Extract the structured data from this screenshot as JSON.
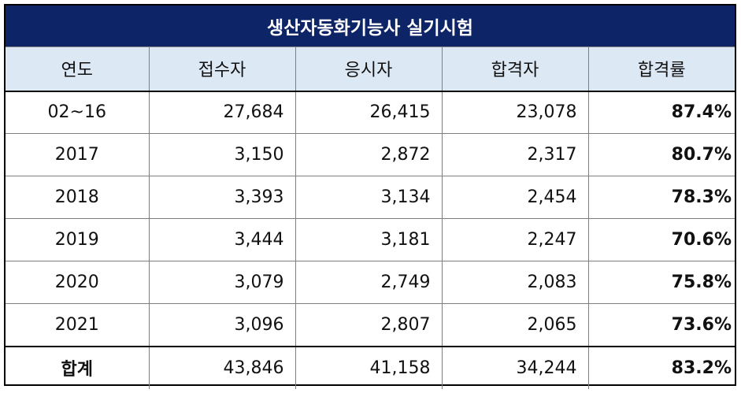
{
  "title": "생산자동화기능사 실기시험",
  "headers": [
    "연도",
    "접수자",
    "응시자",
    "합격자",
    "합격률"
  ],
  "rows": [
    {
      "year": "02~16",
      "applicants": "27,684",
      "examinees": "26,415",
      "passed": "23,078",
      "rate": "87.4%"
    },
    {
      "year": "2017",
      "applicants": "3,150",
      "examinees": "2,872",
      "passed": "2,317",
      "rate": "80.7%"
    },
    {
      "year": "2018",
      "applicants": "3,393",
      "examinees": "3,134",
      "passed": "2,454",
      "rate": "78.3%"
    },
    {
      "year": "2019",
      "applicants": "3,444",
      "examinees": "3,181",
      "passed": "2,247",
      "rate": "70.6%"
    },
    {
      "year": "2020",
      "applicants": "3,079",
      "examinees": "2,749",
      "passed": "2,083",
      "rate": "75.8%"
    },
    {
      "year": "2021",
      "applicants": "3,096",
      "examinees": "2,807",
      "passed": "2,065",
      "rate": "73.6%"
    }
  ],
  "total": {
    "year": "합계",
    "applicants": "43,846",
    "examinees": "41,158",
    "passed": "34,244",
    "rate": "83.2%"
  },
  "colors": {
    "title_bg": "#0d2466",
    "header_bg": "#dde8f5"
  }
}
